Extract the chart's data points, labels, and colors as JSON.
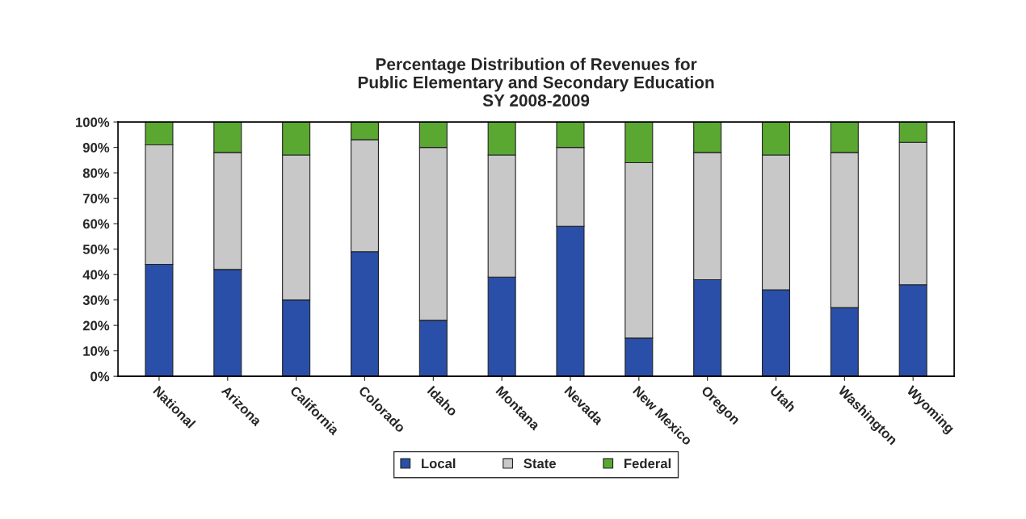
{
  "chart_data": {
    "type": "bar",
    "title": "Percentage Distribution of Revenues for\nPublic Elementary and Secondary Education\nSY 2008-2009",
    "categories": [
      "National",
      "Arizona",
      "California",
      "Colorado",
      "Idaho",
      "Montana",
      "Nevada",
      "New Mexico",
      "Oregon",
      "Utah",
      "Washington",
      "Wyoming"
    ],
    "stacked": true,
    "series": [
      {
        "name": "Local",
        "color": "#2a4fa8",
        "values": [
          44,
          42,
          30,
          49,
          22,
          39,
          59,
          15,
          38,
          34,
          27,
          36
        ]
      },
      {
        "name": "State",
        "color": "#c8c8c8",
        "values": [
          47,
          46,
          57,
          44,
          68,
          48,
          31,
          69,
          50,
          53,
          61,
          56
        ]
      },
      {
        "name": "Federal",
        "color": "#5aa832",
        "values": [
          9,
          12,
          13,
          7,
          10,
          13,
          10,
          16,
          12,
          13,
          12,
          8
        ]
      }
    ],
    "ylim": [
      0,
      100
    ],
    "yticks": [
      {
        "value": 0,
        "label": "0%"
      },
      {
        "value": 10,
        "label": "10%"
      },
      {
        "value": 20,
        "label": "20%"
      },
      {
        "value": 30,
        "label": "30%"
      },
      {
        "value": 40,
        "label": "40%"
      },
      {
        "value": 50,
        "label": "50%"
      },
      {
        "value": 60,
        "label": "60%"
      },
      {
        "value": 70,
        "label": "70%"
      },
      {
        "value": 80,
        "label": "80%"
      },
      {
        "value": 90,
        "label": "90%"
      },
      {
        "value": 100,
        "label": "100%"
      }
    ],
    "grid": false,
    "legend": "bottom"
  }
}
